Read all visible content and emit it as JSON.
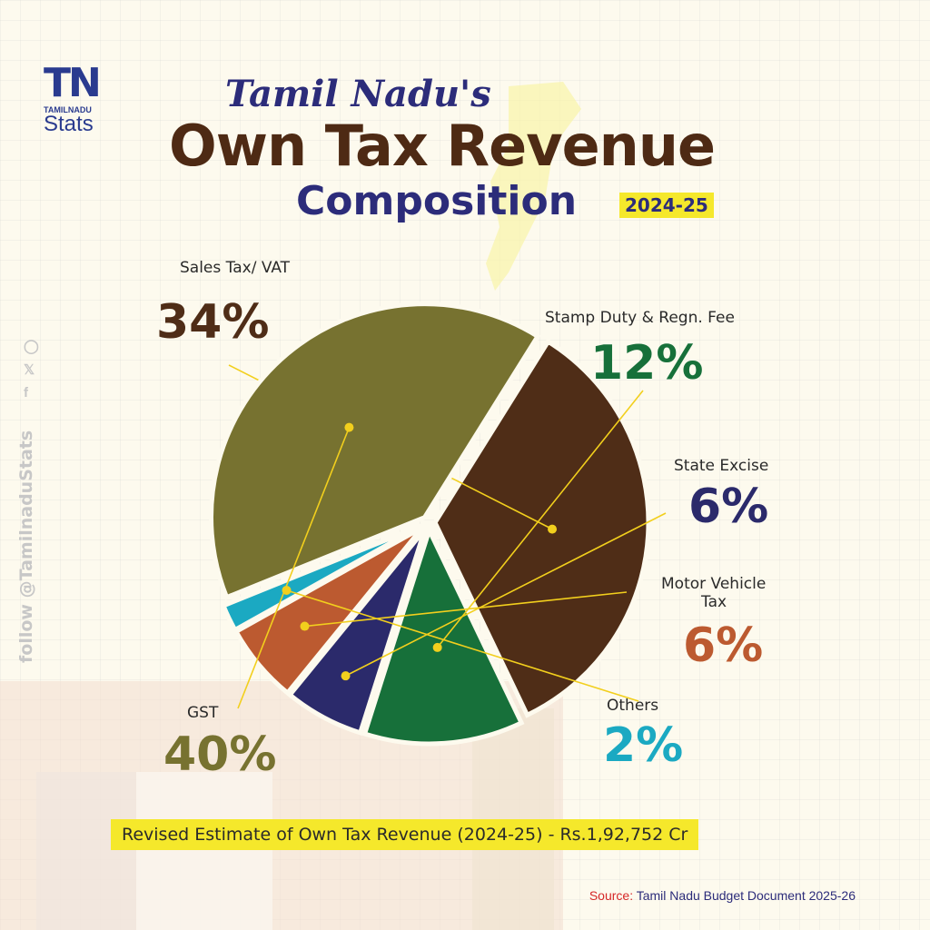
{
  "logo": {
    "mark": "TN",
    "small": "TAMILNADU",
    "stats": "Stats"
  },
  "header": {
    "title_line1": "Tamil Nadu's",
    "title_line2": "Own Tax Revenue",
    "title_line3": "Composition",
    "year": "2024-25"
  },
  "side": {
    "follow": "follow @TamilnaduStats",
    "icons": [
      "facebook-icon",
      "x-icon",
      "instagram-icon"
    ]
  },
  "chart_data": {
    "type": "pie",
    "title": "Tamil Nadu's Own Tax Revenue Composition 2024-25",
    "slices": [
      {
        "label": "Sales Tax/ VAT",
        "pct_label": "34%",
        "value": 34,
        "color": "#4f2d17"
      },
      {
        "label": "Stamp Duty & Regn. Fee",
        "pct_label": "12%",
        "value": 12,
        "color": "#17703a"
      },
      {
        "label": "State Excise",
        "pct_label": "6%",
        "value": 6,
        "color": "#2b2a6b"
      },
      {
        "label": "Motor Vehicle Tax",
        "pct_label": "6%",
        "value": 6,
        "color": "#bc5a30"
      },
      {
        "label": "Others",
        "pct_label": "2%",
        "value": 2,
        "color": "#1ba9c2"
      },
      {
        "label": "GST",
        "pct_label": "40%",
        "value": 40,
        "color": "#777230"
      }
    ]
  },
  "footer": {
    "banner": "Revised Estimate of Own Tax Revenue (2024-25) - Rs.1,92,752 Cr",
    "source_label": "Source:",
    "source_text": "Tamil Nadu Budget Document 2025-26"
  }
}
